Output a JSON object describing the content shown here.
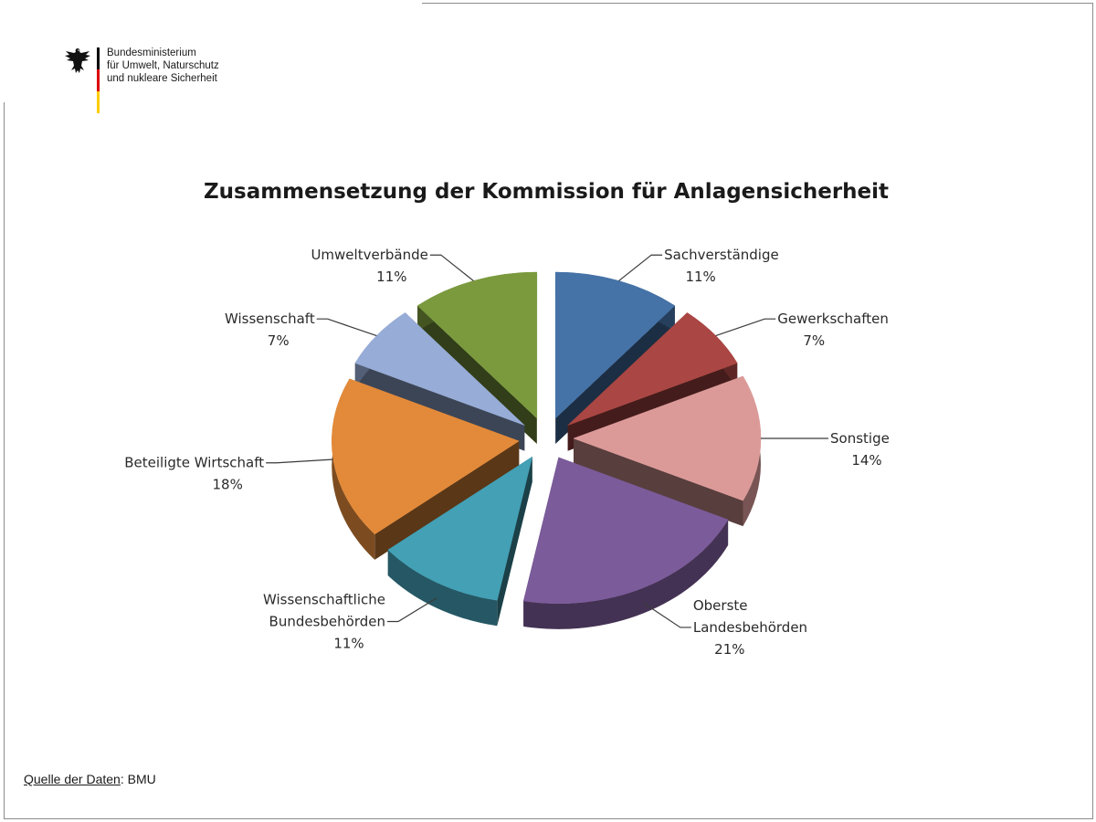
{
  "header": {
    "ministry_lines": [
      "Bundesministerium",
      "für Umwelt, Naturschutz",
      "und nukleare Sicherheit"
    ],
    "logo_icon": "federal-eagle-icon",
    "flag_colors": [
      "#000000",
      "#dd0000",
      "#ffce00"
    ]
  },
  "chart_data": {
    "type": "pie",
    "title": "Zusammensetzung der Kommission für Anlagensicherheit",
    "exploded": true,
    "three_d": true,
    "slices": [
      {
        "name": "Sachverständige",
        "lines": [
          "Sachverständige",
          "11%"
        ],
        "value": 11,
        "color": "#4572a7"
      },
      {
        "name": "Gewerkschaften",
        "lines": [
          "Gewerkschaften",
          "7%"
        ],
        "value": 7,
        "color": "#aa4643"
      },
      {
        "name": "Sonstige",
        "lines": [
          "Sonstige",
          "14%"
        ],
        "value": 14,
        "color": "#db9a98"
      },
      {
        "name": "Oberste Landesbehörden",
        "lines": [
          "Oberste",
          "Landesbehörden",
          "21%"
        ],
        "value": 21,
        "color": "#7b5b99"
      },
      {
        "name": "Wissenschaftliche Bundesbehörden",
        "lines": [
          "Wissenschaftliche",
          "Bundesbehörden",
          "11%"
        ],
        "value": 11,
        "color": "#43a0b5"
      },
      {
        "name": "Beteiligte Wirtschaft",
        "lines": [
          "Beteiligte Wirtschaft",
          "18%"
        ],
        "value": 18,
        "color": "#e28a3a"
      },
      {
        "name": "Wissenschaft",
        "lines": [
          "Wissenschaft",
          "7%"
        ],
        "value": 7,
        "color": "#97acd6"
      },
      {
        "name": "Umweltverbände",
        "lines": [
          "Umweltverbände",
          "11%"
        ],
        "value": 11,
        "color": "#7b9a3e"
      }
    ]
  },
  "footer": {
    "source_label": "Quelle der Daten",
    "source_sep": ": ",
    "source_value": "BMU"
  }
}
